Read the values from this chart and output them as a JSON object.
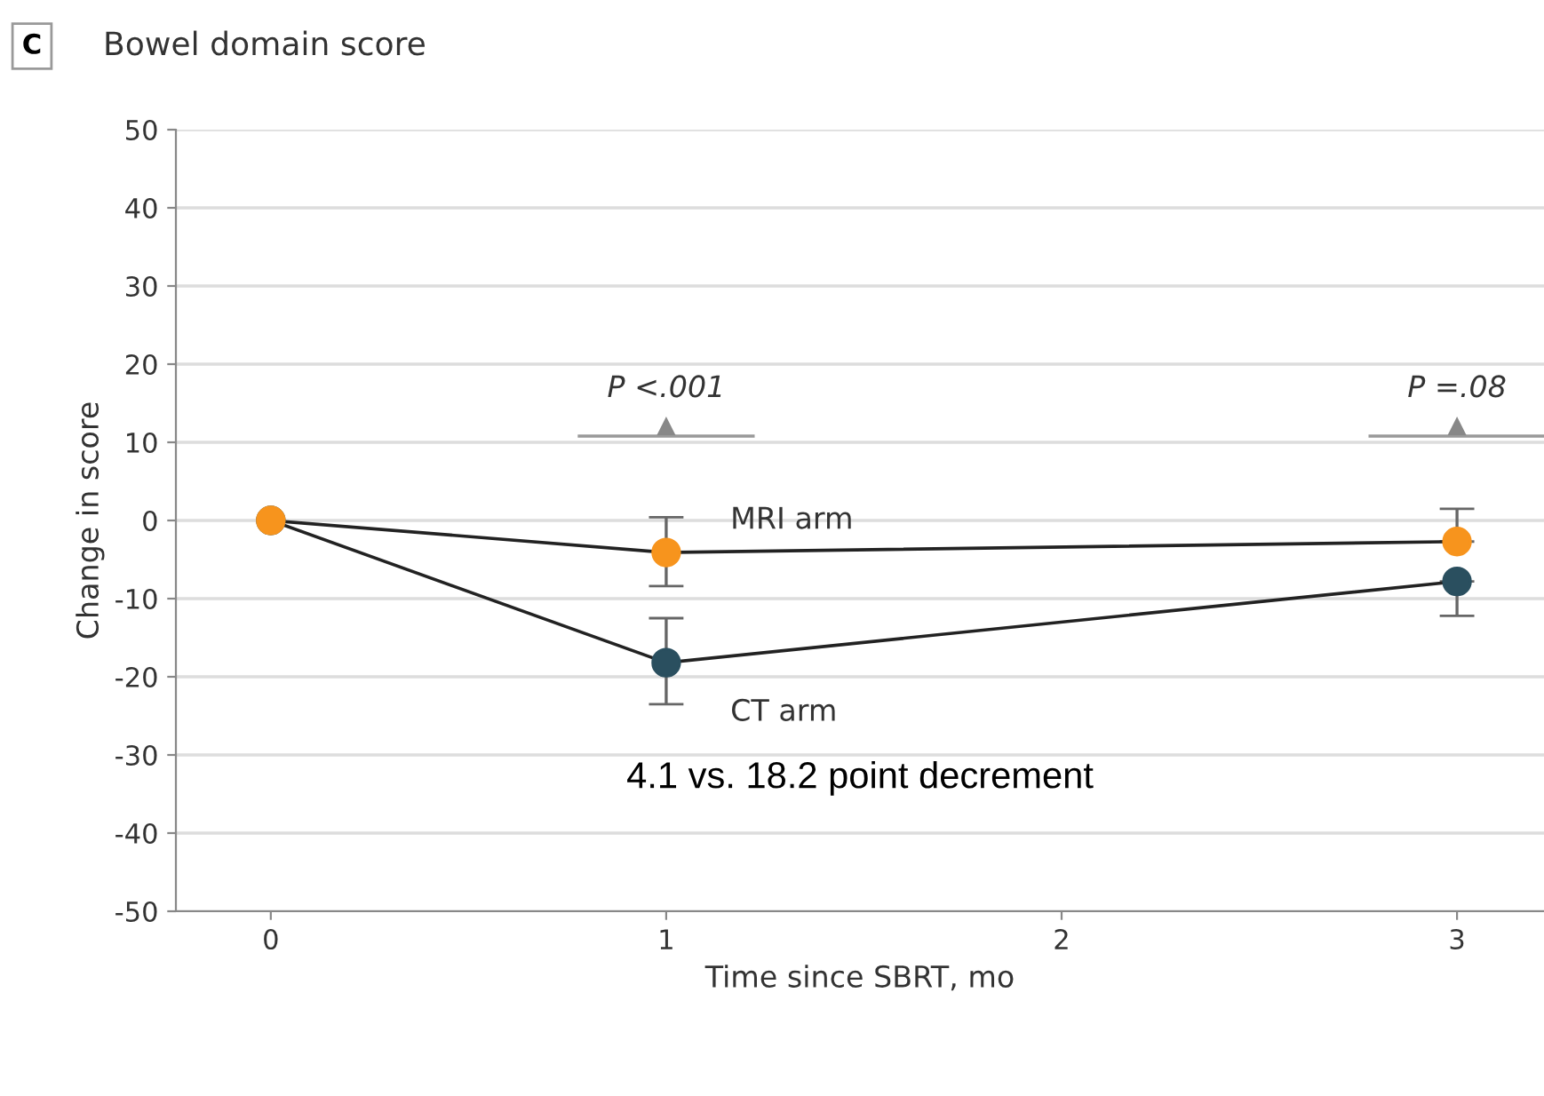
{
  "chart_data": {
    "type": "line",
    "title": "Bowel domain score",
    "xlabel": "Time since SBRT, mo",
    "ylabel": "Change in score",
    "x": [
      0,
      1,
      3
    ],
    "series": [
      {
        "name": "MRI arm",
        "color": "#f7941d",
        "values": [
          0,
          -4.1,
          -2.7
        ],
        "errors": [
          null,
          [
            -8.4,
            0.4
          ],
          [
            -2.7,
            1.5
          ]
        ]
      },
      {
        "name": "CT arm",
        "color": "#2a4f5f",
        "values": [
          0,
          -18.2,
          -7.8
        ],
        "errors": [
          null,
          [
            -23.5,
            -12.5
          ],
          [
            -12.2,
            -7.8
          ]
        ]
      }
    ],
    "xlim": [
      -0.24,
      3.22
    ],
    "xticks": [
      0,
      1,
      2,
      3
    ],
    "ylim": [
      -50,
      50
    ],
    "yticks": [
      -50,
      -40,
      -30,
      -20,
      -10,
      0,
      10,
      20,
      30,
      40,
      50
    ],
    "grid": "y",
    "marker": "circle",
    "line_style": "solid",
    "legend": false,
    "annotations": [
      "C",
      {
        "text": "P <.001",
        "x": 1,
        "y": 12
      },
      {
        "text": "P =.08",
        "x": 3,
        "y": 12
      },
      "4.1 vs. 18.2 point decrement"
    ]
  }
}
